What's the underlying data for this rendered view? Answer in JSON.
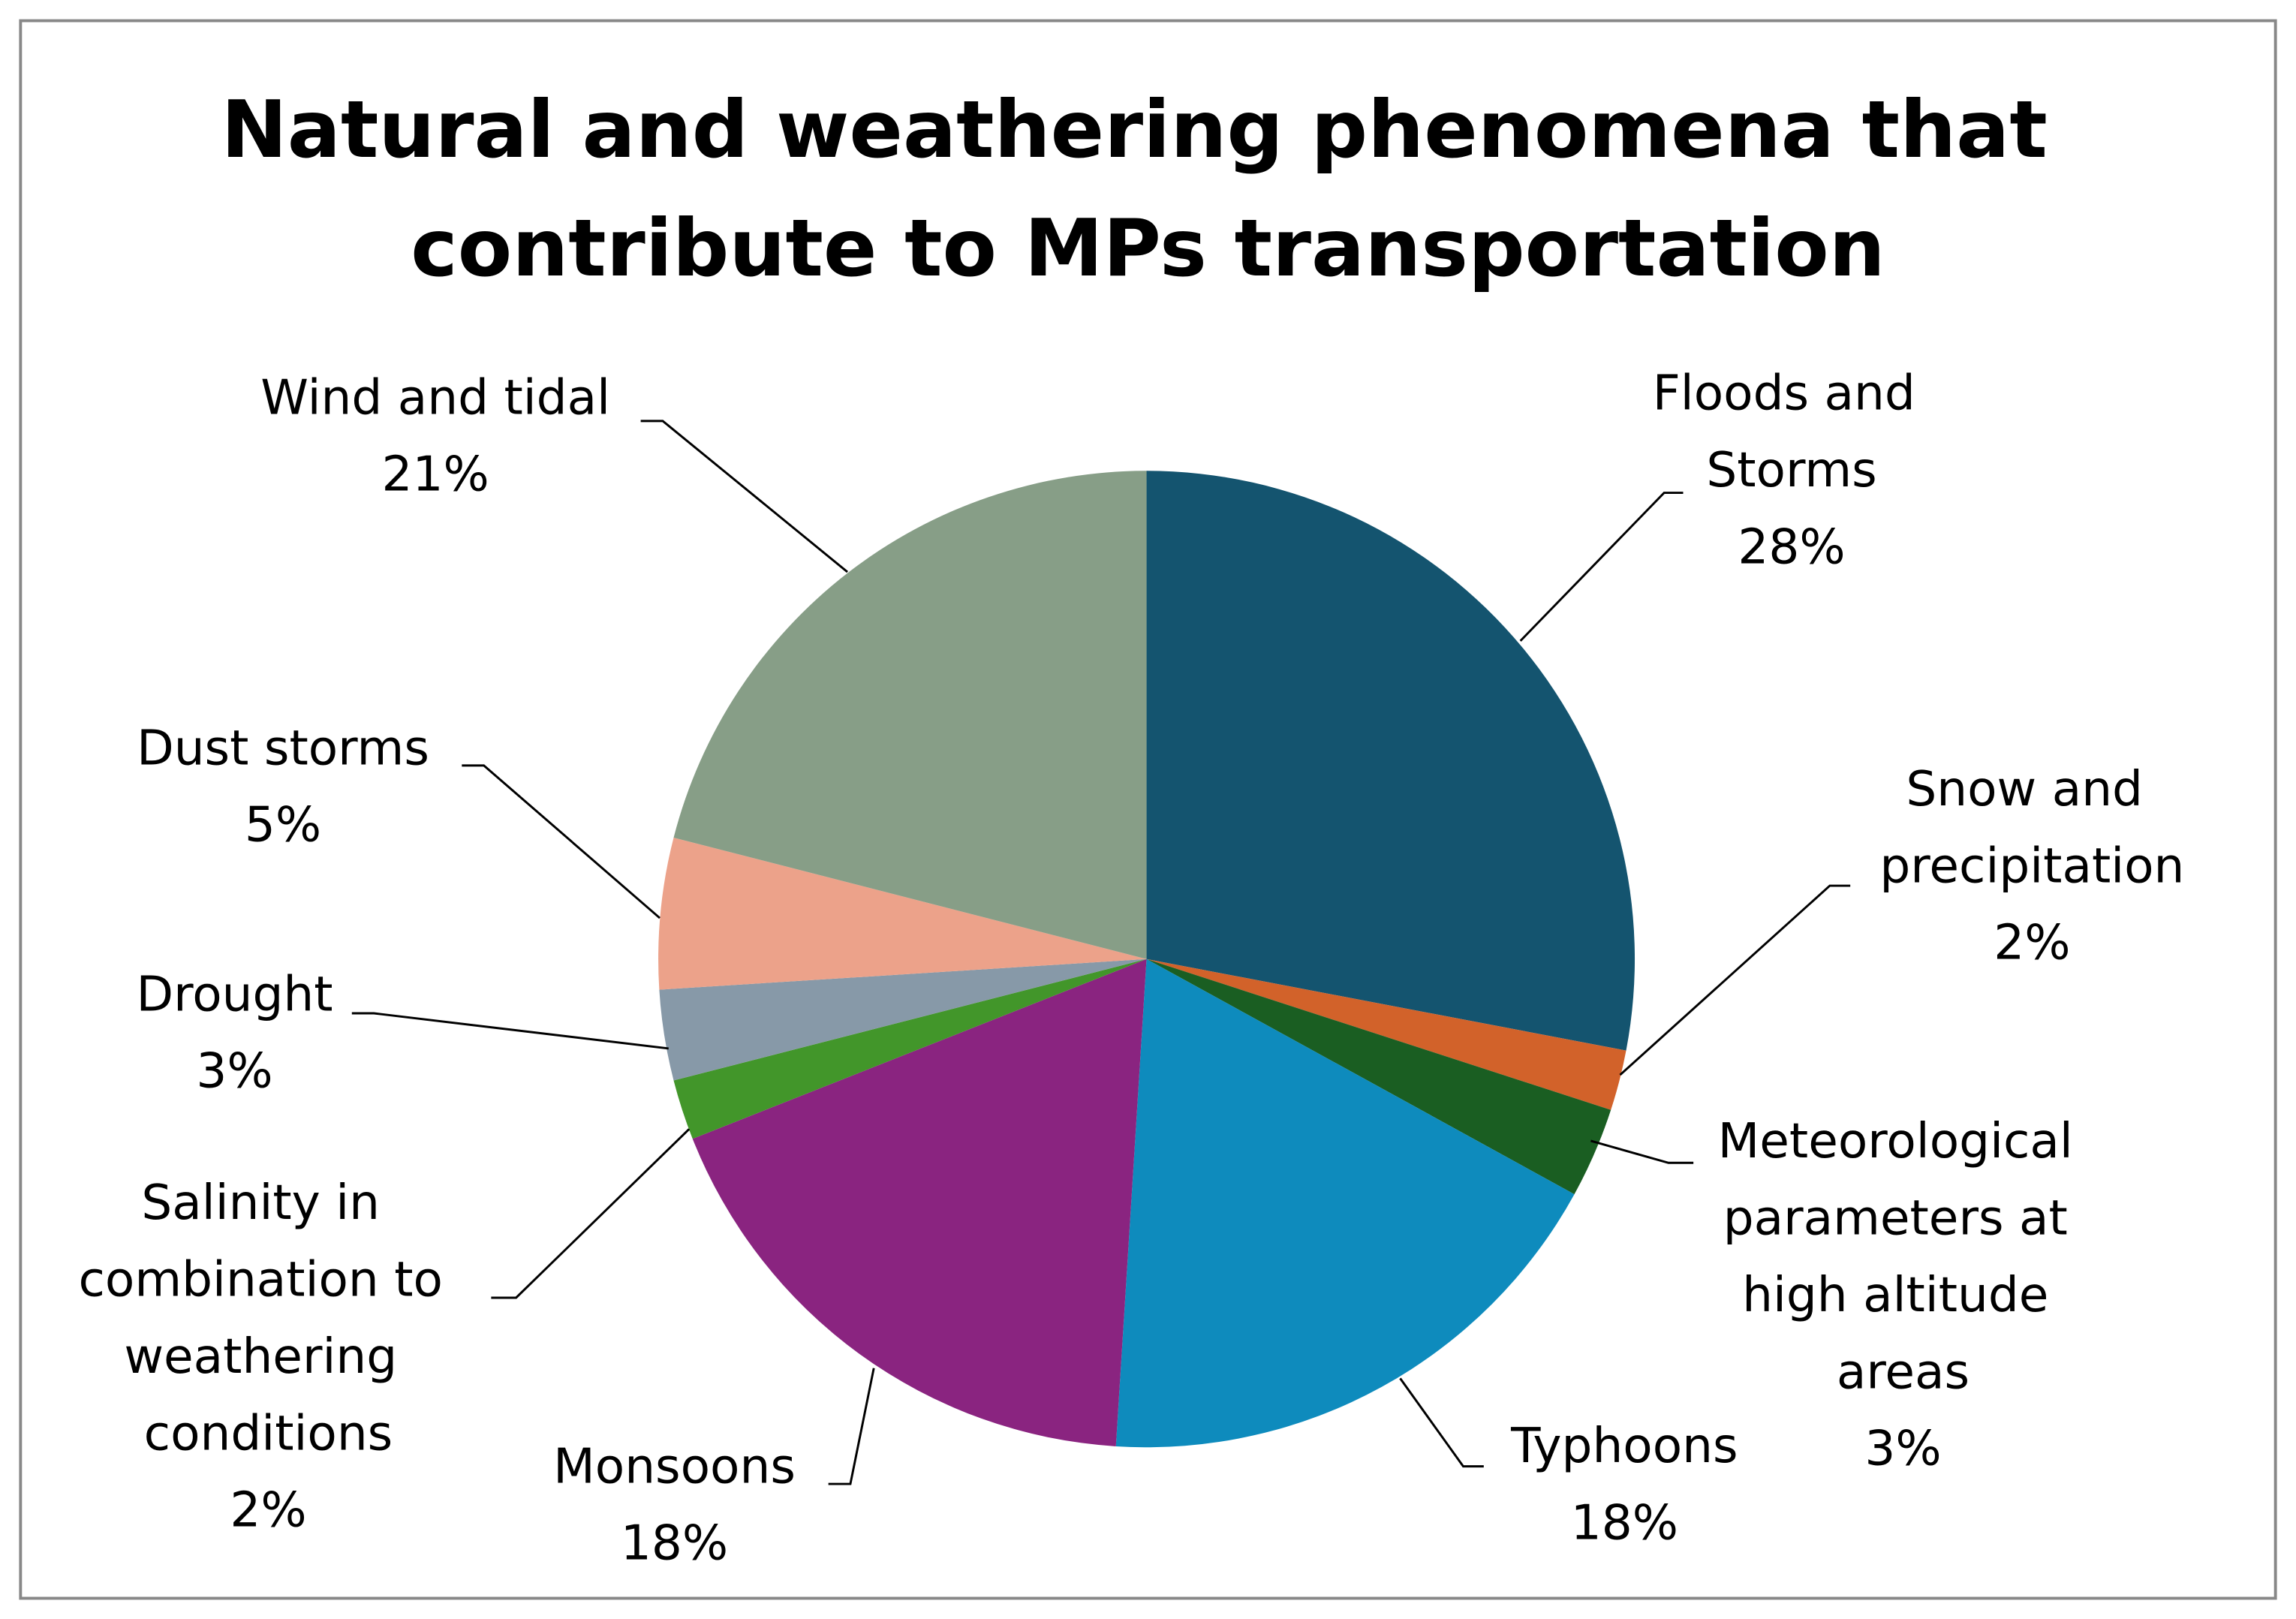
{
  "chart_data": {
    "type": "pie",
    "title": "Natural and weathering phenomena that contribute to MPs transportation",
    "categories": [
      "Floods and Storms",
      "Snow and precipitation",
      "Meteorological parameters at high altitude areas",
      "Typhoons",
      "Monsoons",
      "Salinity in combination to weathering conditions",
      "Drought",
      "Dust storms",
      "Wind and tidal"
    ],
    "values": [
      28,
      2,
      3,
      18,
      18,
      2,
      3,
      5,
      21
    ],
    "value_labels": [
      "28%",
      "2%",
      "3%",
      "18%",
      "18%",
      "2%",
      "3%",
      "5%",
      "21%"
    ],
    "colors": [
      "#14546f",
      "#d2622a",
      "#1a5e22",
      "#0e8bbd",
      "#8a2480",
      "#42962a",
      "#8799a8",
      "#eca28a",
      "#879e87"
    ]
  }
}
